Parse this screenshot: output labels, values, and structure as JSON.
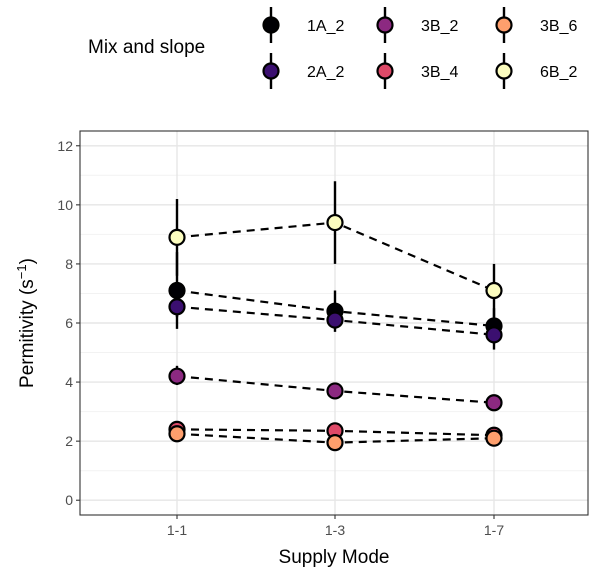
{
  "chart_data": {
    "type": "line",
    "title": "",
    "xlabel": "Supply Mode",
    "ylabel": "Permitivity (s",
    "ylabel_sup": "−1",
    "ylabel_end": ")",
    "categories": [
      "1-1",
      "1-3",
      "1-7"
    ],
    "ylim": [
      -0.5,
      12.5
    ],
    "yticks": [
      0,
      2,
      4,
      6,
      8,
      10,
      12
    ],
    "grid": true,
    "line_style": "dashed",
    "error_bars": true,
    "legend": {
      "title": "Mix and slope",
      "placement": "top"
    },
    "series": [
      {
        "name": "1A_2",
        "color": "#000004",
        "values": [
          7.1,
          6.4,
          5.9
        ],
        "err_low": [
          5.8,
          5.7,
          5.3
        ],
        "err_high": [
          8.4,
          7.1,
          6.5
        ]
      },
      {
        "name": "2A_2",
        "color": "#3b0f70",
        "values": [
          6.55,
          6.1,
          5.6
        ],
        "err_low": [
          6.2,
          5.8,
          5.1
        ],
        "err_high": [
          6.9,
          6.4,
          6.1
        ]
      },
      {
        "name": "3B_2",
        "color": "#8c2981",
        "values": [
          4.2,
          3.7,
          3.3
        ],
        "err_low": [
          3.9,
          3.5,
          3.15
        ],
        "err_high": [
          4.55,
          3.95,
          3.45
        ]
      },
      {
        "name": "3B_4",
        "color": "#de4968",
        "values": [
          2.4,
          2.35,
          2.2
        ],
        "err_low": [
          2.3,
          2.25,
          2.1
        ],
        "err_high": [
          2.5,
          2.45,
          2.3
        ]
      },
      {
        "name": "3B_6",
        "color": "#fe9f6d",
        "values": [
          2.25,
          1.95,
          2.1
        ],
        "err_low": [
          2.15,
          1.8,
          2.0
        ],
        "err_high": [
          2.35,
          2.1,
          2.2
        ]
      },
      {
        "name": "6B_2",
        "color": "#fcfdbf",
        "values": [
          8.9,
          9.4,
          7.1
        ],
        "err_low": [
          7.6,
          8.0,
          6.2
        ],
        "err_high": [
          10.2,
          10.8,
          8.0
        ]
      }
    ]
  }
}
